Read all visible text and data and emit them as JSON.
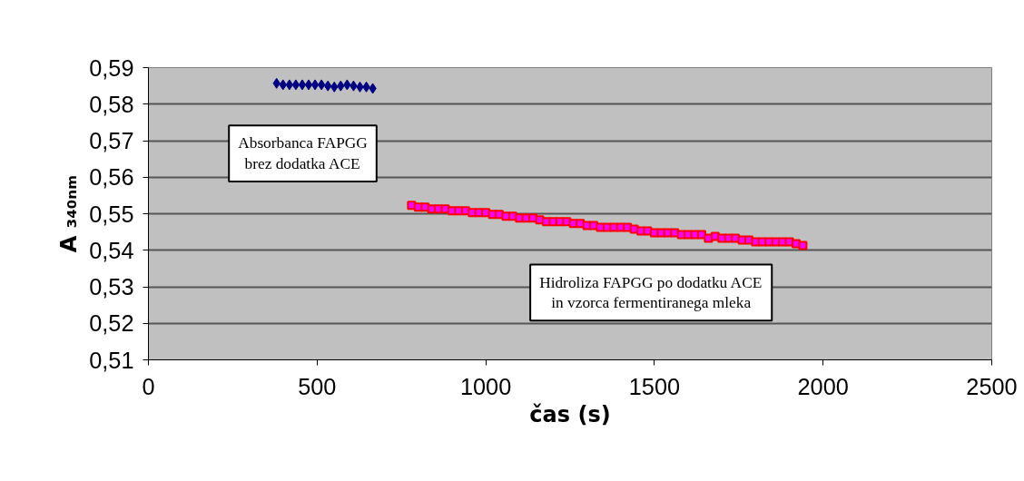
{
  "chart_data": {
    "type": "scatter",
    "xlabel": "čas (s)",
    "ylabel": "A ₃₄₀ₙₘ",
    "xlim": [
      0,
      2500
    ],
    "xticks": [
      0,
      500,
      1000,
      1500,
      2000,
      2500
    ],
    "ylim": [
      0.51,
      0.59
    ],
    "yticks": [
      {
        "value": 0.51,
        "label": "0,51"
      },
      {
        "value": 0.52,
        "label": "0,52"
      },
      {
        "value": 0.53,
        "label": "0,53"
      },
      {
        "value": 0.54,
        "label": "0,54"
      },
      {
        "value": 0.55,
        "label": "0,55"
      },
      {
        "value": 0.56,
        "label": "0,56"
      },
      {
        "value": 0.57,
        "label": "0,57"
      },
      {
        "value": 0.58,
        "label": "0,58"
      },
      {
        "value": 0.59,
        "label": "0,59"
      }
    ],
    "grid": "y",
    "series": [
      {
        "name": "Absorbanca FAPGG\nbrez dodatka ACE",
        "color": "#000080",
        "marker": "diamond",
        "x": [
          380,
          399,
          418,
          437,
          456,
          475,
          494,
          513,
          532,
          551,
          570,
          589,
          608,
          627,
          646,
          665
        ],
        "values": [
          0.5857,
          0.5853,
          0.5853,
          0.5853,
          0.5853,
          0.5853,
          0.5853,
          0.5853,
          0.585,
          0.5847,
          0.585,
          0.5853,
          0.585,
          0.5847,
          0.5847,
          0.5843
        ]
      },
      {
        "name": "Hidroliza FAPGG po dodatku ACE\nin vzorca fermentiranega mleka",
        "color": "#ff0000",
        "marker": "square",
        "x": [
          780,
          800,
          820,
          840,
          860,
          880,
          900,
          920,
          940,
          960,
          980,
          1000,
          1020,
          1040,
          1060,
          1080,
          1100,
          1120,
          1140,
          1160,
          1180,
          1200,
          1220,
          1240,
          1260,
          1280,
          1300,
          1320,
          1340,
          1360,
          1380,
          1400,
          1420,
          1440,
          1460,
          1480,
          1500,
          1520,
          1540,
          1560,
          1580,
          1600,
          1620,
          1640,
          1660,
          1680,
          1700,
          1720,
          1740,
          1760,
          1780,
          1800,
          1820,
          1840,
          1860,
          1880,
          1900,
          1920,
          1940
        ],
        "values": [
          0.5523,
          0.5518,
          0.5518,
          0.5513,
          0.5513,
          0.5513,
          0.5508,
          0.5508,
          0.5508,
          0.5503,
          0.5503,
          0.5503,
          0.5498,
          0.5498,
          0.5493,
          0.5493,
          0.5488,
          0.5488,
          0.5488,
          0.5483,
          0.5478,
          0.5478,
          0.5478,
          0.5478,
          0.5473,
          0.5473,
          0.5468,
          0.5468,
          0.5463,
          0.5463,
          0.5463,
          0.5463,
          0.5463,
          0.5458,
          0.5453,
          0.5453,
          0.5448,
          0.5448,
          0.5448,
          0.5448,
          0.5443,
          0.5443,
          0.5443,
          0.5443,
          0.5433,
          0.5438,
          0.5433,
          0.5433,
          0.5433,
          0.5428,
          0.5428,
          0.5423,
          0.5423,
          0.5423,
          0.5423,
          0.5423,
          0.5423,
          0.5418,
          0.5413
        ]
      }
    ]
  }
}
